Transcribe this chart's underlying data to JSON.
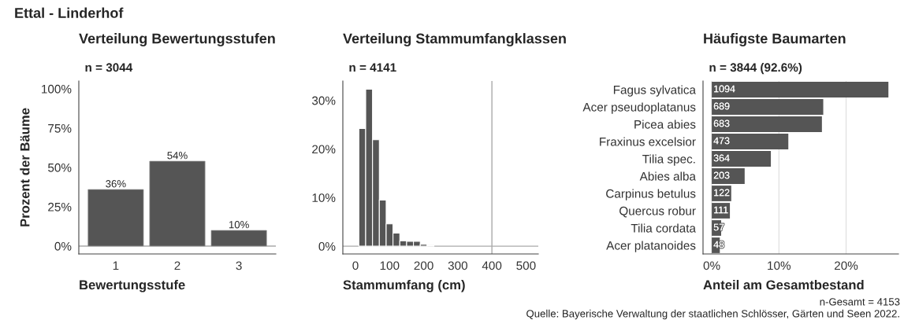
{
  "chart_data": [
    {
      "type": "bar",
      "title": "Verteilung Bewertungsstufen",
      "subtitle": "n = 3044",
      "xlabel": "Bewertungsstufe",
      "ylabel": "Prozent der Bäume",
      "categories": [
        "1",
        "2",
        "3"
      ],
      "values": [
        36,
        54,
        10
      ],
      "value_labels": [
        "36%",
        "54%",
        "10%"
      ],
      "color": "#555555",
      "ylim": [
        -5,
        105
      ],
      "yticks": [
        {
          "value": 0,
          "label": "0%"
        },
        {
          "value": 25,
          "label": "25%"
        },
        {
          "value": 50,
          "label": "50%"
        },
        {
          "value": 75,
          "label": "75%"
        },
        {
          "value": 100,
          "label": "100%"
        }
      ],
      "ref_lines": [
        {
          "axis": "y",
          "value": 0,
          "color": "#aaaaaa"
        }
      ],
      "grid": false
    },
    {
      "type": "histogram",
      "title": "Verteilung Stammumfangklassen",
      "subtitle": "n = 4141",
      "xlabel": "Stammumfang (cm)",
      "bins": [
        10,
        30,
        50,
        70,
        90,
        110,
        130,
        150,
        170,
        190,
        210,
        230
      ],
      "values": [
        24.2,
        32.3,
        21.9,
        9.5,
        4.6,
        2.7,
        1.1,
        1.0,
        1.0,
        0.4,
        0.2
      ],
      "color": "#555555",
      "xlim": [
        -37,
        536
      ],
      "xticks": [
        0,
        100,
        200,
        300,
        400,
        500
      ],
      "ylim": [
        -1.6,
        34
      ],
      "yticks": [
        {
          "value": 0,
          "label": "0%"
        },
        {
          "value": 10,
          "label": "10%"
        },
        {
          "value": 20,
          "label": "20%"
        },
        {
          "value": 30,
          "label": "30%"
        }
      ],
      "ref_lines": [
        {
          "axis": "y",
          "value": 0,
          "color": "#aaaaaa"
        },
        {
          "axis": "x",
          "value": 400,
          "color": "#aaaaaa"
        }
      ],
      "grid": false
    },
    {
      "type": "bar",
      "orientation": "horizontal",
      "title": "Häufigste Baumarten",
      "subtitle": "n = 3844 (92.6%)",
      "xlabel": "Anteil am Gesamtbestand",
      "categories": [
        "Fagus sylvatica",
        "Acer pseudoplatanus",
        "Picea abies",
        "Fraxinus excelsior",
        "Tilia spec.",
        "Abies alba",
        "Carpinus betulus",
        "Quercus robur",
        "Tilia cordata",
        "Acer platanoides"
      ],
      "values": [
        26.3,
        16.6,
        16.4,
        11.4,
        8.8,
        4.9,
        2.9,
        2.7,
        1.4,
        1.2
      ],
      "annotations": [
        "1094",
        "689",
        "683",
        "473",
        "364",
        "203",
        "122",
        "111",
        "57",
        "48"
      ],
      "color": "#555555",
      "xlim": [
        -1.3,
        27.8
      ],
      "xticks": [
        {
          "value": 0,
          "label": "0%"
        },
        {
          "value": 10,
          "label": "10%"
        },
        {
          "value": 20,
          "label": "20%"
        }
      ],
      "grid": "x"
    },
    {
      "type": "other",
      "title": "Ettal - Linderhof",
      "annotations": [
        "n-Gesamt = 4153",
        "Quelle: Bayerische Verwaltung der staatlichen Schlösser, Gärten und Seen 2022."
      ]
    }
  ]
}
